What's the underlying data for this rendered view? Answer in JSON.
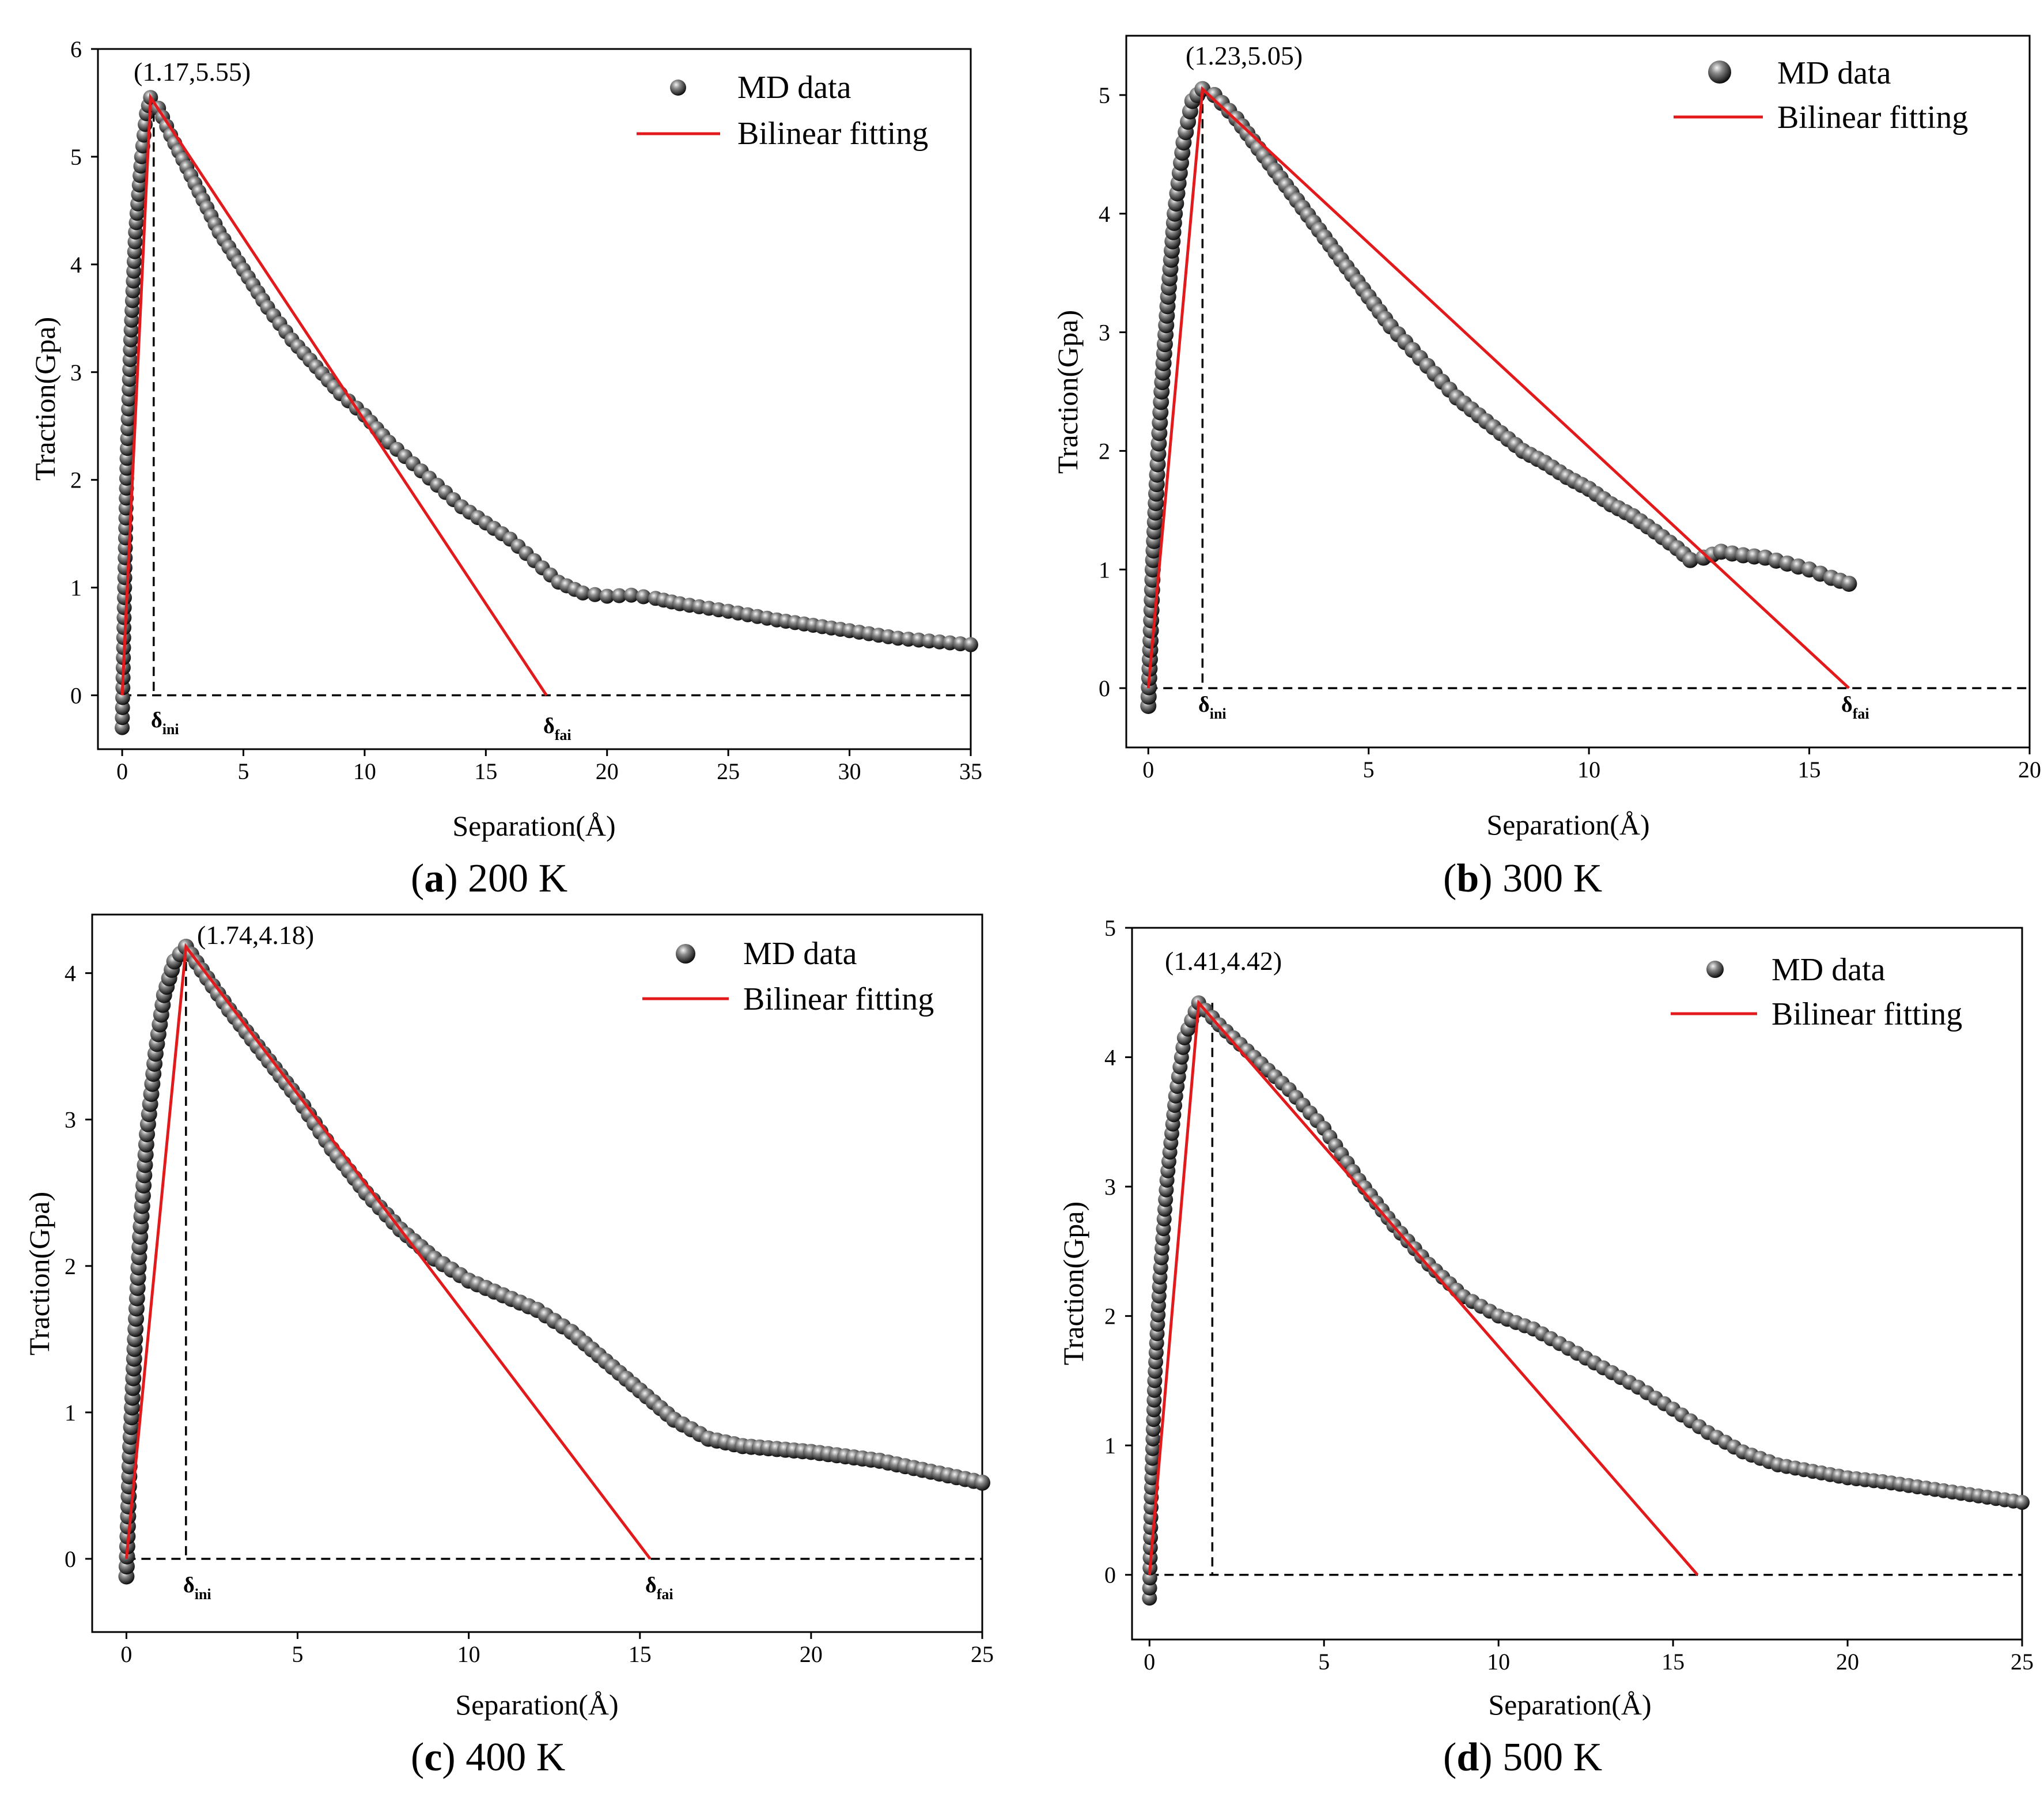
{
  "colors": {
    "fit": "#e31a1c",
    "marker_light": "#8a8a8a",
    "marker_dark": "#080808"
  },
  "panels": [
    {
      "caption": {
        "letter": "a",
        "text": "200 K"
      },
      "chart_data": {
        "type": "scatter",
        "xlabel": "Separation(Å)",
        "ylabel": "Traction(Gpa)",
        "xlim": [
          -1,
          35
        ],
        "ylim": [
          -0.5,
          6
        ],
        "xticks": [
          0,
          5,
          10,
          15,
          20,
          25,
          30,
          35
        ],
        "yticks": [
          0,
          1,
          2,
          3,
          4,
          5,
          6
        ],
        "legend": {
          "position": "top-right",
          "entries": [
            "MD data",
            "Bilinear fitting"
          ]
        },
        "peak": {
          "x": 1.17,
          "y": 5.55,
          "label": "(1.17,5.55)"
        },
        "delta_ini": {
          "x": 1.3,
          "label": "δ",
          "sub": "ini"
        },
        "delta_fai": {
          "x": 17.5,
          "label": "δ",
          "sub": "fai"
        },
        "fit": {
          "x": [
            0,
            1.17,
            17.5
          ],
          "y": [
            0,
            5.55,
            0
          ]
        },
        "md_curve": {
          "x": [
            0,
            0.1,
            0.2,
            0.35,
            0.55,
            0.8,
            1.0,
            1.17,
            1.5,
            2.0,
            3.0,
            4.0,
            5.0,
            6.0,
            7.0,
            8.0,
            9.0,
            10.0,
            11.0,
            12.0,
            13.0,
            14.0,
            15.0,
            16.0,
            17.0,
            18.0,
            19.0,
            20.0,
            21.0,
            22.0,
            23.0,
            25.0,
            27.0,
            30.0,
            32.0,
            35.0
          ],
          "y": [
            -0.3,
            1.0,
            2.2,
            3.3,
            4.3,
            5.0,
            5.4,
            5.55,
            5.45,
            5.2,
            4.75,
            4.3,
            3.95,
            3.6,
            3.3,
            3.05,
            2.8,
            2.6,
            2.35,
            2.15,
            1.95,
            1.75,
            1.6,
            1.45,
            1.25,
            1.05,
            0.95,
            0.92,
            0.93,
            0.9,
            0.85,
            0.78,
            0.7,
            0.6,
            0.53,
            0.47
          ]
        }
      }
    },
    {
      "caption": {
        "letter": "b",
        "text": "300 K"
      },
      "chart_data": {
        "type": "scatter",
        "xlabel": "Separation(Å)",
        "ylabel": "Traction(Gpa)",
        "xlim": [
          -0.5,
          20
        ],
        "ylim": [
          -0.5,
          5.5
        ],
        "xticks": [
          0,
          5,
          10,
          15,
          20
        ],
        "yticks": [
          0,
          1,
          2,
          3,
          4,
          5
        ],
        "legend": {
          "position": "top-right",
          "entries": [
            "MD data",
            "Bilinear fitting"
          ]
        },
        "peak": {
          "x": 1.23,
          "y": 5.05,
          "label": "(1.23,5.05)"
        },
        "delta_ini": {
          "x": 1.23,
          "label": "δ",
          "sub": "ini"
        },
        "delta_fai": {
          "x": 15.9,
          "label": "δ",
          "sub": "fai"
        },
        "fit": {
          "x": [
            0,
            1.23,
            15.9
          ],
          "y": [
            0,
            5.05,
            0
          ]
        },
        "md_curve": {
          "x": [
            0,
            0.05,
            0.1,
            0.2,
            0.3,
            0.45,
            0.6,
            0.8,
            1.0,
            1.23,
            1.5,
            2.0,
            2.5,
            3.0,
            3.5,
            4.0,
            4.5,
            5.0,
            5.5,
            6.0,
            6.5,
            7.0,
            7.5,
            8.0,
            8.5,
            9.0,
            9.5,
            10.0,
            10.5,
            11.0,
            11.5,
            12.0,
            12.3,
            12.6,
            13.0,
            13.5,
            14.0,
            14.5,
            15.0,
            15.5,
            15.9
          ],
          "y": [
            -0.15,
            0.4,
            1.0,
            1.8,
            2.5,
            3.3,
            4.0,
            4.6,
            4.95,
            5.05,
            5.0,
            4.8,
            4.55,
            4.3,
            4.05,
            3.8,
            3.55,
            3.3,
            3.05,
            2.85,
            2.65,
            2.45,
            2.3,
            2.15,
            2.0,
            1.9,
            1.78,
            1.68,
            1.55,
            1.45,
            1.32,
            1.18,
            1.08,
            1.1,
            1.15,
            1.12,
            1.1,
            1.05,
            1.0,
            0.93,
            0.88
          ]
        }
      }
    },
    {
      "caption": {
        "letter": "c",
        "text": "400 K"
      },
      "chart_data": {
        "type": "scatter",
        "xlabel": "Separation(Å)",
        "ylabel": "Traction(Gpa)",
        "xlim": [
          -1,
          25
        ],
        "ylim": [
          -0.5,
          4.4
        ],
        "xticks": [
          0,
          5,
          10,
          15,
          20,
          25
        ],
        "yticks": [
          0,
          1,
          2,
          3,
          4
        ],
        "legend": {
          "position": "top-right",
          "entries": [
            "MD data",
            "Bilinear fitting"
          ]
        },
        "peak": {
          "x": 1.74,
          "y": 4.18,
          "label": "(1.74,4.18)"
        },
        "delta_ini": {
          "x": 1.74,
          "label": "δ",
          "sub": "ini"
        },
        "delta_fai": {
          "x": 15.3,
          "label": "δ",
          "sub": "fai"
        },
        "fit": {
          "x": [
            0,
            1.74,
            15.3
          ],
          "y": [
            0,
            4.18,
            0
          ]
        },
        "md_curve": {
          "x": [
            0,
            0.1,
            0.25,
            0.4,
            0.6,
            0.85,
            1.1,
            1.4,
            1.74,
            2.2,
            3.0,
            4.0,
            5.0,
            6.0,
            7.0,
            8.0,
            9.0,
            10.0,
            11.0,
            12.0,
            13.0,
            14.0,
            15.0,
            16.0,
            17.0,
            18.0,
            19.0,
            20.0,
            21.0,
            22.0,
            23.0,
            24.0,
            25.0
          ],
          "y": [
            -0.12,
            0.7,
            1.5,
            2.2,
            2.9,
            3.45,
            3.85,
            4.08,
            4.18,
            4.02,
            3.75,
            3.45,
            3.15,
            2.8,
            2.5,
            2.25,
            2.05,
            1.9,
            1.8,
            1.7,
            1.55,
            1.35,
            1.15,
            0.95,
            0.82,
            0.77,
            0.75,
            0.73,
            0.7,
            0.67,
            0.62,
            0.57,
            0.52
          ]
        }
      }
    },
    {
      "caption": {
        "letter": "d",
        "text": "500 K"
      },
      "chart_data": {
        "type": "scatter",
        "xlabel": "Separation(Å)",
        "ylabel": "Traction(Gpa)",
        "xlim": [
          -0.5,
          25
        ],
        "ylim": [
          -0.5,
          5
        ],
        "xticks": [
          0,
          5,
          10,
          15,
          20,
          25
        ],
        "yticks": [
          0,
          1,
          2,
          3,
          4,
          5
        ],
        "legend": {
          "position": "top-right",
          "entries": [
            "MD data",
            "Bilinear fitting"
          ]
        },
        "peak": {
          "x": 1.41,
          "y": 4.42,
          "label": "(1.41,4.42)"
        },
        "delta_ini": {
          "x": 1.8,
          "label": "",
          "sub": ""
        },
        "delta_fai": null,
        "fit": {
          "x": [
            0,
            1.41,
            15.7
          ],
          "y": [
            0,
            4.42,
            0
          ]
        },
        "md_curve": {
          "x": [
            0,
            0.05,
            0.15,
            0.3,
            0.5,
            0.75,
            1.0,
            1.41,
            2.0,
            3.0,
            4.0,
            5.0,
            6.0,
            7.0,
            8.0,
            9.0,
            10.0,
            11.0,
            12.0,
            13.0,
            14.0,
            15.0,
            16.0,
            17.0,
            18.0,
            19.0,
            20.0,
            21.0,
            22.0,
            23.0,
            24.0,
            25.0
          ],
          "y": [
            -0.18,
            0.6,
            1.5,
            2.3,
            3.05,
            3.7,
            4.15,
            4.42,
            4.25,
            4.0,
            3.75,
            3.45,
            3.05,
            2.7,
            2.4,
            2.15,
            2.0,
            1.9,
            1.75,
            1.6,
            1.45,
            1.28,
            1.1,
            0.95,
            0.85,
            0.8,
            0.75,
            0.72,
            0.68,
            0.64,
            0.6,
            0.56
          ]
        }
      }
    }
  ]
}
